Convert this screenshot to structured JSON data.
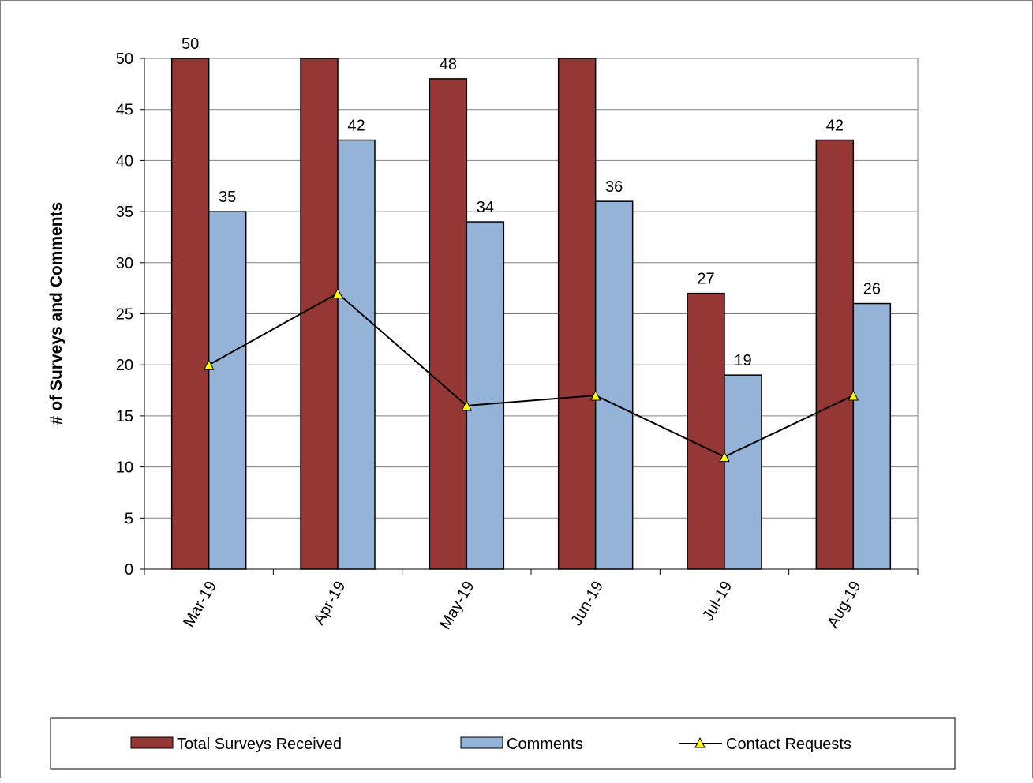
{
  "chart_data": {
    "type": "bar",
    "title": "",
    "xlabel": "",
    "ylabel": "# of Surveys and Comments",
    "ylim": [
      0,
      50
    ],
    "yticks": [
      0,
      5,
      10,
      15,
      20,
      25,
      30,
      35,
      40,
      45,
      50
    ],
    "grid": true,
    "legend_position": "bottom",
    "categories": [
      "Mar-19",
      "Apr-19",
      "May-19",
      "Jun-19",
      "Jul-19",
      "Aug-19"
    ],
    "series": [
      {
        "name": "Total Surveys Received",
        "type": "bar",
        "color": "#953735",
        "values": [
          50,
          50,
          48,
          50,
          27,
          42
        ],
        "labels": [
          "50",
          "",
          "48",
          "",
          "27",
          "42"
        ]
      },
      {
        "name": "Comments",
        "type": "bar",
        "color": "#95B3D7",
        "values": [
          35,
          42,
          34,
          36,
          19,
          26
        ],
        "labels": [
          "35",
          "42",
          "34",
          "36",
          "19",
          "26"
        ]
      },
      {
        "name": "Contact Requests",
        "type": "line",
        "color": "#000000",
        "marker": "triangle",
        "marker_color": "#FFFF00",
        "values": [
          20,
          27,
          16,
          17,
          11,
          17
        ]
      }
    ]
  }
}
